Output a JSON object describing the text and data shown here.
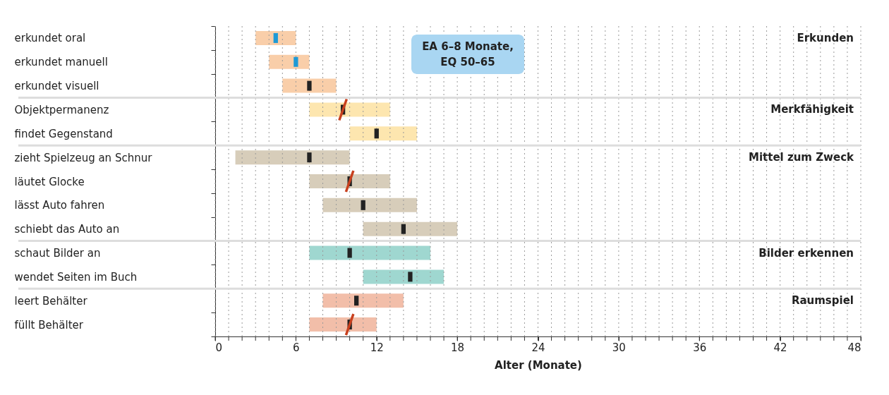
{
  "chart_data": {
    "type": "bar",
    "orientation": "horizontal",
    "xlabel": "Alter (Monate)",
    "categories": [
      "erkundet oral",
      "erkundet manuell",
      "erkundet visuell",
      "Objektpermanenz",
      "findet Gegenstand",
      "zieht Spielzeug an Schnur",
      "läutet Glocke",
      "lässt Auto fahren",
      "schiebt das Auto an",
      "schaut Bilder an",
      "wendet Seiten im Buch",
      "leert Behälter",
      "füllt Behälter"
    ],
    "series": [
      {
        "type": "bar",
        "base": [
          3,
          4,
          5,
          7,
          10,
          1.5,
          7,
          8,
          11,
          7,
          11,
          8,
          7
        ],
        "values": [
          3,
          3,
          4,
          6,
          5,
          8.5,
          6,
          7,
          7,
          9,
          6,
          6,
          5
        ],
        "colors": [
          "#f8c9a0",
          "#f8c9a0",
          "#f8c9a0",
          "#fde3a6",
          "#fde3a6",
          "#d3c8b3",
          "#d3c8b3",
          "#d3c8b3",
          "#d3c8b3",
          "#95d3cb",
          "#95d3cb",
          "#f1b7a0",
          "#f1b7a0"
        ]
      },
      {
        "type": "scatter",
        "values": [
          4.5,
          6,
          7,
          9.5,
          12,
          7,
          10,
          11,
          14,
          10,
          14.5,
          10.5,
          10
        ],
        "colors": [
          "#1e9ad6",
          "#1e9ad6",
          "#222222",
          "#222222",
          "#222222",
          "#222222",
          "#222222",
          "#222222",
          "#222222",
          "#222222",
          "#222222",
          "#222222",
          "#222222"
        ]
      },
      {
        "type": "scatter",
        "values": [
          null,
          null,
          null,
          9.5,
          null,
          null,
          10,
          null,
          null,
          null,
          null,
          null,
          10
        ],
        "color": "#c8401e"
      }
    ],
    "xlim": [
      0,
      48
    ],
    "xticks": [
      0,
      {
        "value": 1,
        "label": null
      },
      {
        "value": 2,
        "label": null
      },
      {
        "value": 3,
        "label": null
      },
      {
        "value": 4,
        "label": null
      },
      {
        "value": 5,
        "label": null
      },
      6,
      {
        "value": 7,
        "label": null
      },
      {
        "value": 8,
        "label": null
      },
      {
        "value": 9,
        "label": null
      },
      {
        "value": 10,
        "label": null
      },
      {
        "value": 11,
        "label": null
      },
      12,
      {
        "value": 13,
        "label": null
      },
      {
        "value": 14,
        "label": null
      },
      {
        "value": 15,
        "label": null
      },
      {
        "value": 16,
        "label": null
      },
      {
        "value": 17,
        "label": null
      },
      18,
      {
        "value": 19,
        "label": null
      },
      {
        "value": 20,
        "label": null
      },
      {
        "value": 21,
        "label": null
      },
      {
        "value": 22,
        "label": null
      },
      {
        "value": 23,
        "label": null
      },
      24,
      {
        "value": 25,
        "label": null
      },
      {
        "value": 26,
        "label": null
      },
      {
        "value": 27,
        "label": null
      },
      {
        "value": 28,
        "label": null
      },
      {
        "value": 29,
        "label": null
      },
      30,
      {
        "value": 31,
        "label": null
      },
      {
        "value": 32,
        "label": null
      },
      {
        "value": 33,
        "label": null
      },
      {
        "value": 34,
        "label": null
      },
      {
        "value": 35,
        "label": null
      },
      36,
      {
        "value": 37,
        "label": null
      },
      {
        "value": 38,
        "label": null
      },
      {
        "value": 39,
        "label": null
      },
      {
        "value": 40,
        "label": null
      },
      {
        "value": 41,
        "label": null
      },
      42,
      {
        "value": 43,
        "label": null
      },
      {
        "value": 44,
        "label": null
      },
      {
        "value": 45,
        "label": null
      },
      {
        "value": 46,
        "label": null
      },
      {
        "value": 47,
        "label": null
      },
      48
    ],
    "grid": "x",
    "annotations": [
      "Erkunden",
      "Merkfähigkeit",
      "Mittel zum Zweck",
      "Bilder erkennen",
      "Raumspiel",
      "EA 6–8 Monate,\nEQ 50–65"
    ]
  }
}
